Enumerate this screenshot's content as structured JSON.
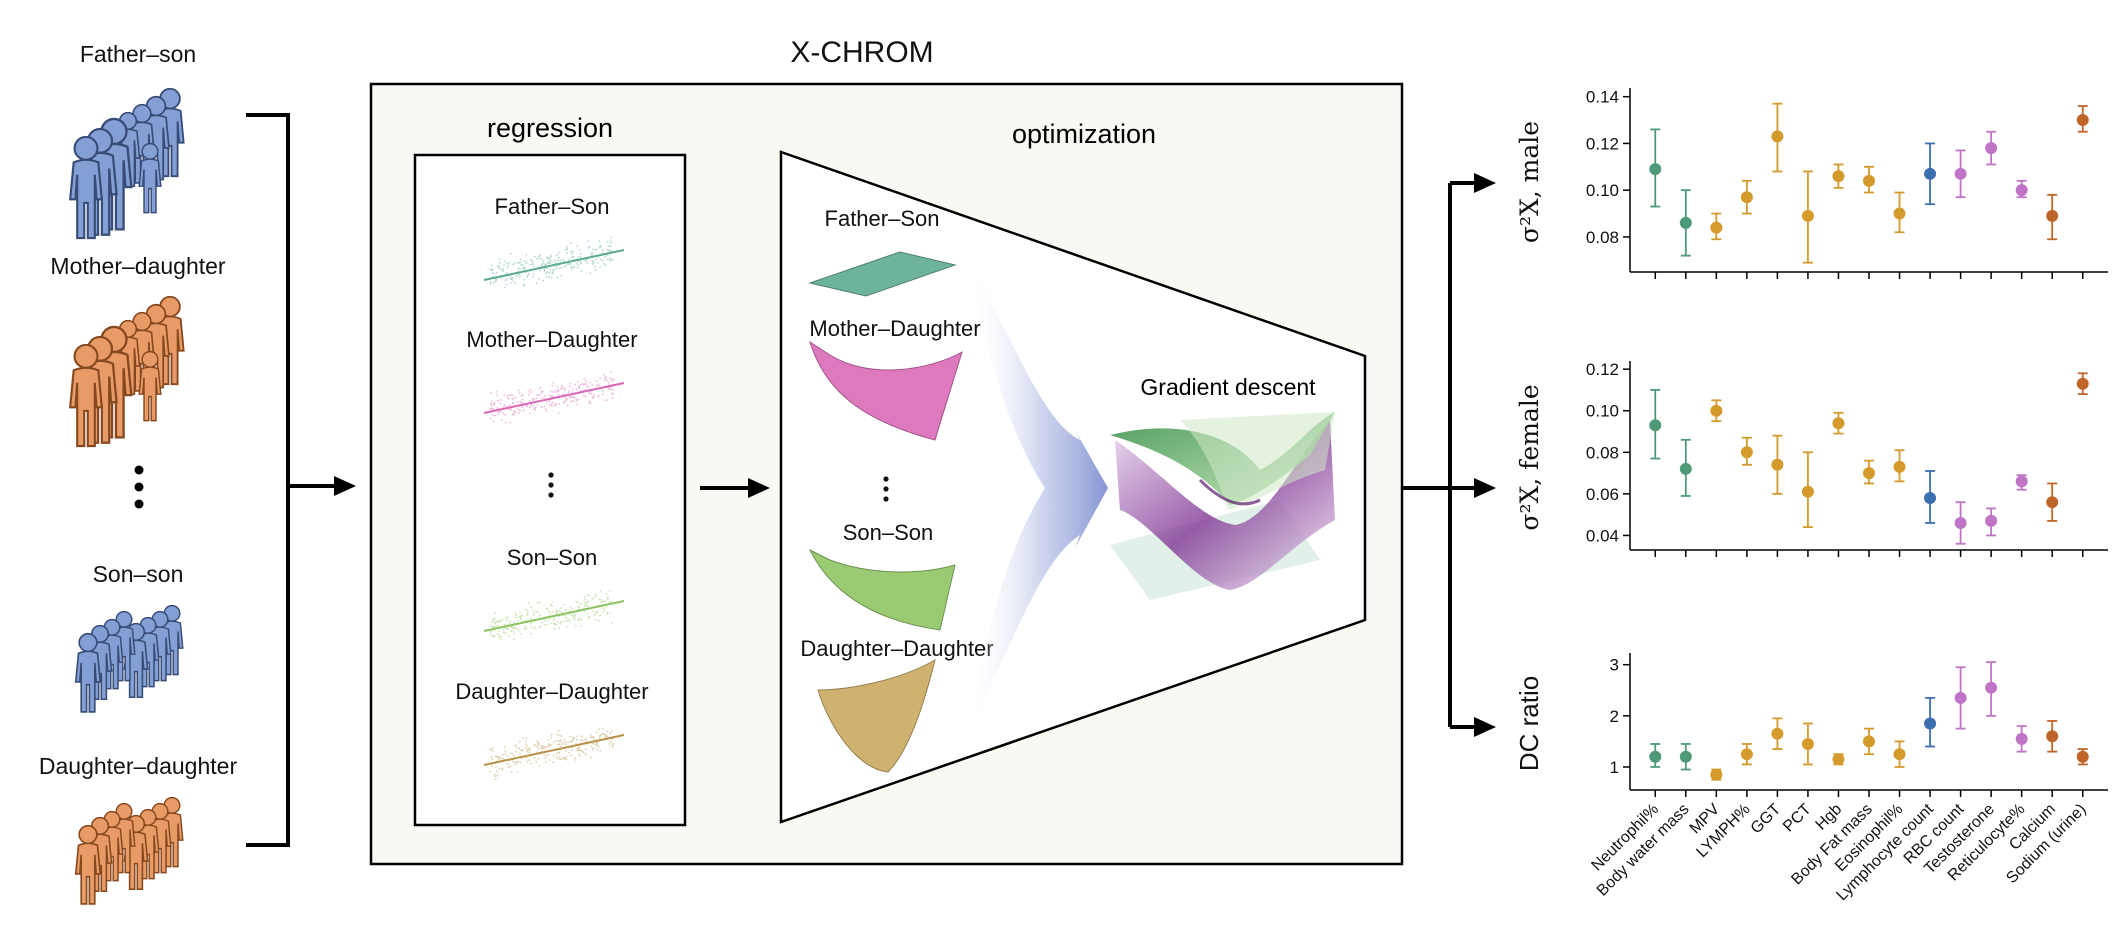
{
  "left_groups": [
    {
      "label": "Father–son",
      "color": "#5b7fc4",
      "icon": "family-group-icon"
    },
    {
      "label": "Mother–daughter",
      "color": "#e07a33",
      "icon": "family-group-icon"
    },
    {
      "label": "Son–son",
      "color": "#5b7fc4",
      "icon": "family-group-icon"
    },
    {
      "label": "Daughter–daughter",
      "color": "#e07a33",
      "icon": "family-group-icon"
    }
  ],
  "main_title": "X-CHROM",
  "regression": {
    "title": "regression",
    "items": [
      {
        "label": "Father–Son",
        "color": "#5aaa8e"
      },
      {
        "label": "Mother–Daughter",
        "color": "#d966b4"
      },
      {
        "label": "Son–Son",
        "color": "#8cc460"
      },
      {
        "label": "Daughter–Daughter",
        "color": "#b99148"
      }
    ]
  },
  "optimization": {
    "title": "optimization",
    "items": [
      {
        "label": "Father–Son",
        "color": "#5aaa8e"
      },
      {
        "label": "Mother–Daughter",
        "color": "#d966b4"
      },
      {
        "label": "Son–Son",
        "color": "#8cc460"
      },
      {
        "label": "Daughter–Daughter",
        "color": "#c9a85c"
      }
    ],
    "gradient_label": "Gradient descent"
  },
  "colors": {
    "panel_bg": "#f7faf3",
    "arrow_fan": "#7f8fd0"
  },
  "chart_data": [
    {
      "type": "scatter",
      "ylabel": "σ²X, male",
      "ylim": [
        0.065,
        0.142
      ],
      "yticks": [
        0.08,
        0.1,
        0.12,
        0.14
      ],
      "ytick_labels": [
        "0.08",
        "0.10",
        "0.12",
        "0.14"
      ],
      "categories": [
        "Neutrophil%",
        "Body water mass",
        "MPV",
        "LYMPH%",
        "GGT",
        "PCT",
        "Hgb",
        "Body Fat mass",
        "Eosinophil%",
        "Lymphocyte count",
        "RBC count",
        "Testosterone",
        "Reticulocyte%",
        "Calcium",
        "Sodium (urine)"
      ],
      "values": [
        0.109,
        0.086,
        0.084,
        0.097,
        0.123,
        0.089,
        0.106,
        0.104,
        0.09,
        0.107,
        0.107,
        0.118,
        0.1,
        0.089,
        0.13
      ],
      "err_low": [
        0.093,
        0.072,
        0.079,
        0.09,
        0.108,
        0.069,
        0.101,
        0.099,
        0.082,
        0.094,
        0.097,
        0.111,
        0.097,
        0.079,
        0.125
      ],
      "err_high": [
        0.126,
        0.1,
        0.09,
        0.104,
        0.137,
        0.108,
        0.111,
        0.11,
        0.099,
        0.12,
        0.117,
        0.125,
        0.104,
        0.098,
        0.136
      ],
      "colors": [
        "#4e9a78",
        "#4e9a78",
        "#d59a2c",
        "#d59a2c",
        "#d59a2c",
        "#d59a2c",
        "#d59a2c",
        "#d59a2c",
        "#d59a2c",
        "#3d6fb0",
        "#c074c6",
        "#c074c6",
        "#c074c6",
        "#c0652a",
        "#c0652a"
      ]
    },
    {
      "type": "scatter",
      "ylabel": "σ²X, female",
      "ylim": [
        0.033,
        0.122
      ],
      "yticks": [
        0.04,
        0.06,
        0.08,
        0.1,
        0.12
      ],
      "ytick_labels": [
        "0.04",
        "0.06",
        "0.08",
        "0.10",
        "0.12"
      ],
      "categories": [
        "Neutrophil%",
        "Body water mass",
        "MPV",
        "LYMPH%",
        "GGT",
        "PCT",
        "Hgb",
        "Body Fat mass",
        "Eosinophil%",
        "Lymphocyte count",
        "RBC count",
        "Testosterone",
        "Reticulocyte%",
        "Calcium",
        "Sodium (urine)"
      ],
      "values": [
        0.093,
        0.072,
        0.1,
        0.08,
        0.074,
        0.061,
        0.094,
        0.07,
        0.073,
        0.058,
        0.046,
        0.047,
        0.066,
        0.056,
        0.113
      ],
      "err_low": [
        0.077,
        0.059,
        0.095,
        0.074,
        0.06,
        0.044,
        0.089,
        0.065,
        0.066,
        0.046,
        0.036,
        0.04,
        0.062,
        0.047,
        0.108
      ],
      "err_high": [
        0.11,
        0.086,
        0.105,
        0.087,
        0.088,
        0.08,
        0.099,
        0.076,
        0.081,
        0.071,
        0.056,
        0.053,
        0.069,
        0.065,
        0.118
      ],
      "colors": [
        "#4e9a78",
        "#4e9a78",
        "#d59a2c",
        "#d59a2c",
        "#d59a2c",
        "#d59a2c",
        "#d59a2c",
        "#d59a2c",
        "#d59a2c",
        "#3d6fb0",
        "#c074c6",
        "#c074c6",
        "#c074c6",
        "#c0652a",
        "#c0652a"
      ]
    },
    {
      "type": "scatter",
      "ylabel": "DC ratio",
      "ylim": [
        0.55,
        3.15
      ],
      "yticks": [
        1,
        2,
        3
      ],
      "ytick_labels": [
        "1",
        "2",
        "3"
      ],
      "categories": [
        "Neutrophil%",
        "Body water mass",
        "MPV",
        "LYMPH%",
        "GGT",
        "PCT",
        "Hgb",
        "Body Fat mass",
        "Eosinophil%",
        "Lymphocyte count",
        "RBC count",
        "Testosterone",
        "Reticulocyte%",
        "Calcium",
        "Sodium (urine)"
      ],
      "values": [
        1.2,
        1.2,
        0.85,
        1.25,
        1.65,
        1.45,
        1.15,
        1.5,
        1.25,
        1.85,
        2.35,
        2.55,
        1.55,
        1.6,
        1.2
      ],
      "err_low": [
        1.0,
        0.95,
        0.75,
        1.05,
        1.35,
        1.05,
        1.05,
        1.25,
        1.0,
        1.4,
        1.75,
        2.0,
        1.3,
        1.3,
        1.05
      ],
      "err_high": [
        1.45,
        1.45,
        0.95,
        1.45,
        1.95,
        1.85,
        1.25,
        1.75,
        1.5,
        2.35,
        2.95,
        3.05,
        1.8,
        1.9,
        1.35
      ],
      "colors": [
        "#4e9a78",
        "#4e9a78",
        "#d59a2c",
        "#d59a2c",
        "#d59a2c",
        "#d59a2c",
        "#d59a2c",
        "#d59a2c",
        "#d59a2c",
        "#3d6fb0",
        "#c074c6",
        "#c074c6",
        "#c074c6",
        "#c0652a",
        "#c0652a"
      ]
    }
  ]
}
